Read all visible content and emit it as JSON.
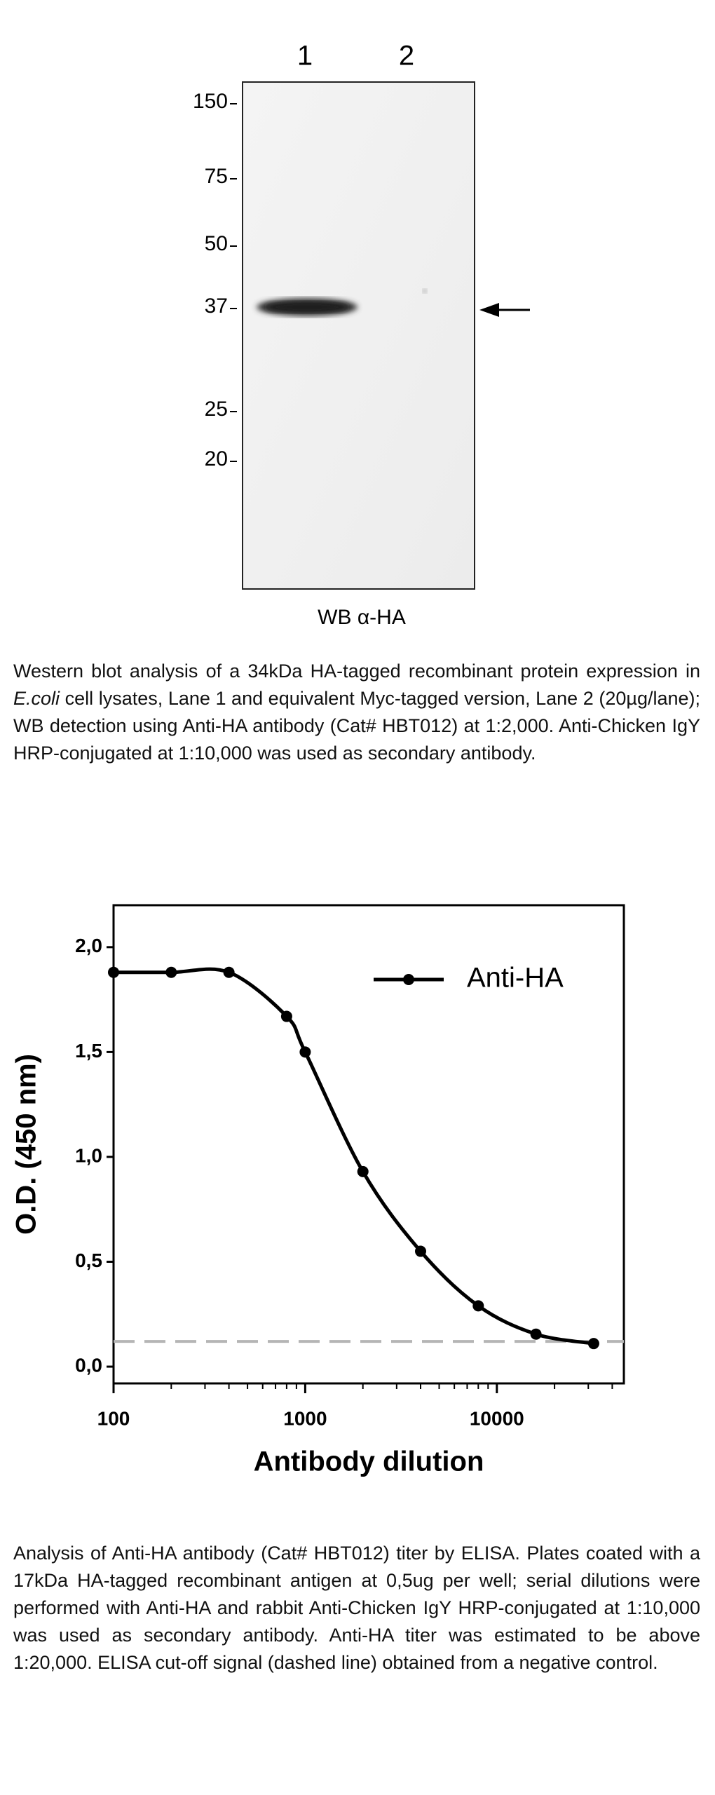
{
  "western_blot": {
    "lanes": [
      "1",
      "2"
    ],
    "markers": [
      "150",
      "75",
      "50",
      "37",
      "25",
      "20"
    ],
    "label": "WB α-HA",
    "caption": {
      "before": "Western blot analysis of a 34kDa HA-tagged recombinant protein expression in ",
      "italic": "E.coli",
      "after": " cell lysates, Lane 1 and equivalent Myc-tagged version, Lane 2  (20µg/lane); WB detection using Anti-HA antibody (Cat# HBT012) at 1:2,000. Anti-Chicken IgY HRP-conjugated at 1:10,000 was used as secondary antibody."
    }
  },
  "chart_data": {
    "type": "line",
    "x_label": "Antibody dilution",
    "y_label": "O.D. (450 nm)",
    "x": [
      100,
      200,
      400,
      800,
      1000,
      2000,
      4000,
      8000,
      16000,
      32000
    ],
    "series": [
      {
        "name": "Anti-HA",
        "color": "#000000",
        "values": [
          1.88,
          1.88,
          1.88,
          1.67,
          1.5,
          0.93,
          0.55,
          0.29,
          0.155,
          0.11
        ]
      }
    ],
    "xlim": [
      100,
      46000
    ],
    "ylim": [
      -0.08,
      2.2
    ],
    "xticks": [
      100,
      1000,
      10000
    ],
    "yticks": [
      {
        "value": 0,
        "label": "0,0"
      },
      {
        "value": 0.5,
        "label": "0,5"
      },
      {
        "value": 1,
        "label": "1,0"
      },
      {
        "value": 1.5,
        "label": "1,5"
      },
      {
        "value": 2,
        "label": "2,0"
      }
    ],
    "log_x": true,
    "grid": false,
    "cutoff": 0.12,
    "cutoff_color": "#b5b5b5"
  },
  "elisa_caption": "Analysis of Anti-HA antibody (Cat# HBT012) titer by ELISA. Plates coated with a 17kDa HA-tagged recombinant antigen at 0,5ug per well; serial dilutions were performed with Anti-HA and rabbit Anti-Chicken IgY HRP-conjugated at 1:10,000 was used as secondary antibody. Anti-HA titer was estimated to be above 1:20,000. ELISA cut-off signal (dashed line) obtained from a negative control."
}
